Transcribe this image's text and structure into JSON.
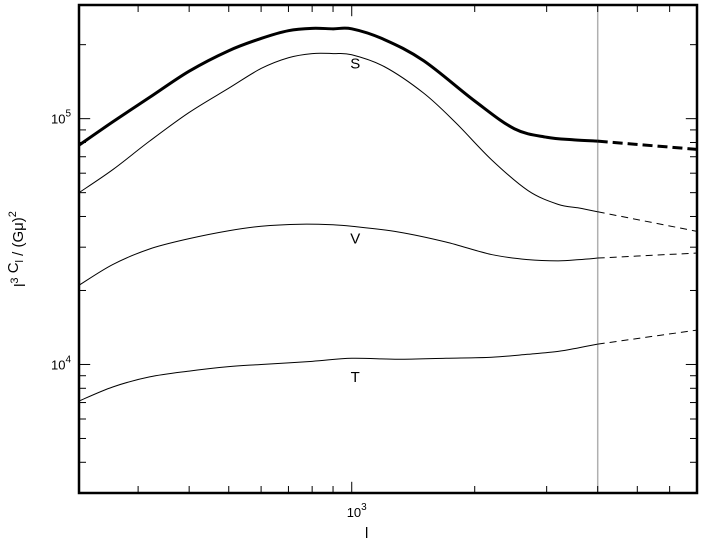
{
  "chart_data": {
    "type": "line",
    "title": "",
    "xlabel": "l",
    "ylabel": "l³ C_l / (Gμ)²",
    "xscale": "log",
    "yscale": "log",
    "xlim": [
      215,
      7000
    ],
    "ylim": [
      3000,
      290000
    ],
    "grid": false,
    "xticks": [
      {
        "value": 1000,
        "base": "10",
        "exp": "3"
      }
    ],
    "yticks": [
      {
        "value": 10000,
        "base": "10",
        "exp": "4"
      },
      {
        "value": 100000,
        "base": "10",
        "exp": "5"
      }
    ],
    "cutoff_line": {
      "x": 4000,
      "color": "#b0b0b0"
    },
    "series": [
      {
        "name": "",
        "style": "thick",
        "x": [
          215,
          260,
          320,
          400,
          500,
          600,
          700,
          800,
          900,
          1000,
          1200,
          1500,
          2000,
          2500,
          3000,
          3500,
          4000
        ],
        "y": [
          78000,
          97000,
          122000,
          156000,
          189000,
          212000,
          228000,
          233000,
          232000,
          232000,
          210000,
          172000,
          118000,
          91000,
          84000,
          82000,
          81000
        ],
        "extrapolated": {
          "x": [
            4000,
            7000
          ],
          "y": [
            81000,
            75000
          ]
        }
      },
      {
        "name": "S",
        "style": "thin",
        "x": [
          215,
          260,
          320,
          400,
          500,
          600,
          700,
          800,
          900,
          1000,
          1200,
          1500,
          1800,
          2200,
          2700,
          3200,
          3600,
          4000
        ],
        "y": [
          50000,
          62000,
          81000,
          106000,
          133000,
          160000,
          177000,
          184000,
          184000,
          182000,
          163000,
          127000,
          96000,
          68000,
          51000,
          44800,
          43300,
          41800
        ],
        "extrapolated": {
          "x": [
            4000,
            7000
          ],
          "y": [
            41800,
            34800
          ]
        }
      },
      {
        "name": "V",
        "style": "thin",
        "x": [
          215,
          260,
          320,
          400,
          500,
          600,
          750,
          900,
          1000,
          1300,
          1700,
          2200,
          2700,
          3200,
          3600,
          4000
        ],
        "y": [
          21000,
          25500,
          29500,
          32500,
          35000,
          36500,
          37200,
          37000,
          36500,
          34600,
          31500,
          28000,
          26700,
          26400,
          26700,
          27100
        ],
        "extrapolated": {
          "x": [
            4000,
            7000
          ],
          "y": [
            27100,
            28400
          ]
        }
      },
      {
        "name": "T",
        "style": "thin",
        "x": [
          215,
          260,
          320,
          400,
          500,
          600,
          800,
          1000,
          1300,
          1700,
          2200,
          2700,
          3200,
          3600,
          4000
        ],
        "y": [
          7100,
          8100,
          8900,
          9400,
          9800,
          10000,
          10300,
          10600,
          10500,
          10600,
          10700,
          11000,
          11300,
          11700,
          12100
        ],
        "extrapolated": {
          "x": [
            4000,
            7000
          ],
          "y": [
            12100,
            13800
          ]
        }
      }
    ],
    "annotations": [
      {
        "text": "S",
        "x": 1020,
        "y": 160000
      },
      {
        "text": "V",
        "x": 1020,
        "y": 31000
      },
      {
        "text": "T",
        "x": 1020,
        "y": 8500
      }
    ]
  }
}
